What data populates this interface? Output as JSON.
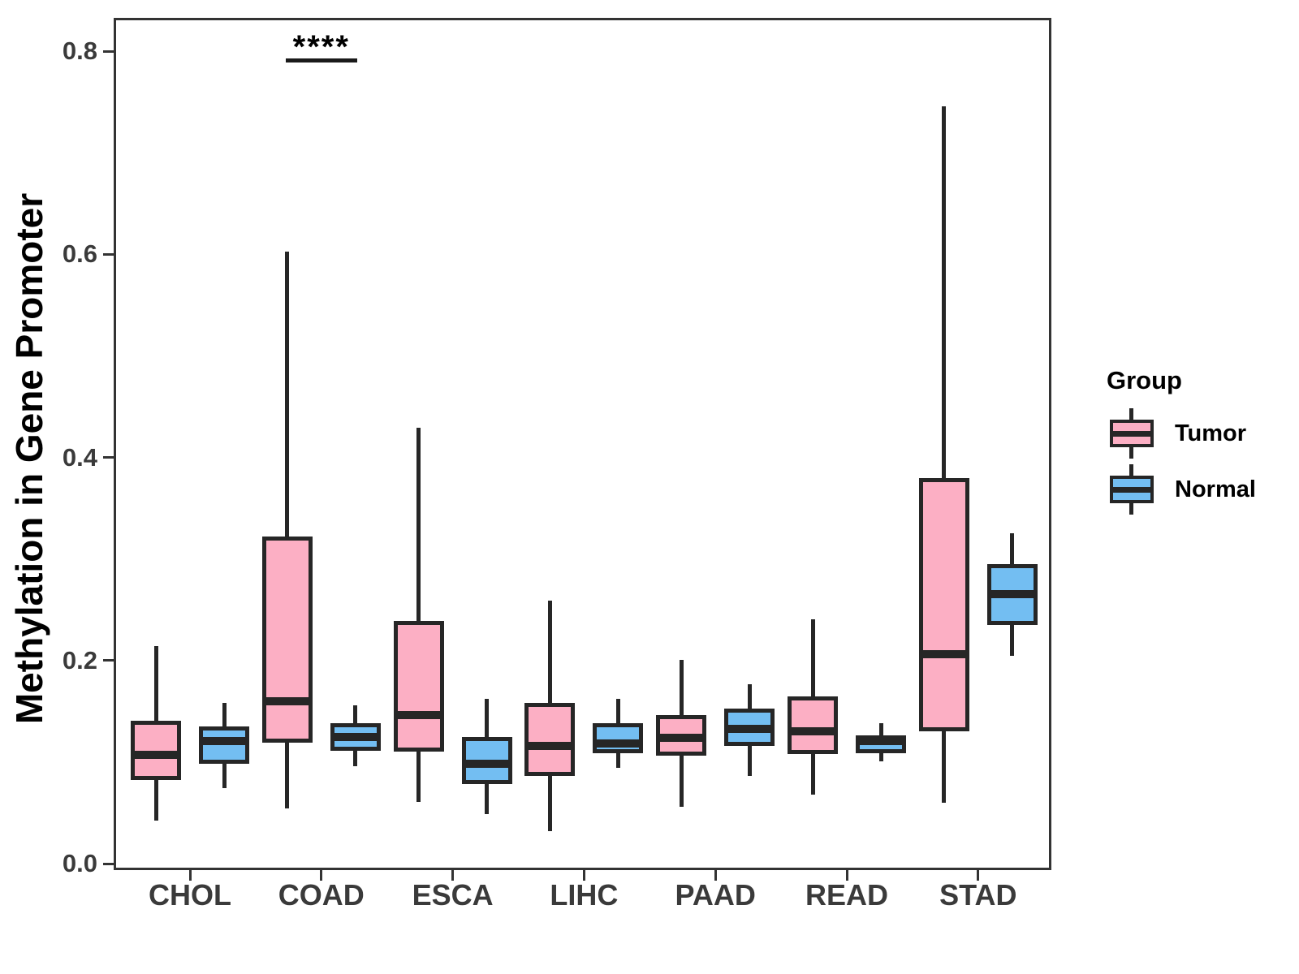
{
  "chart_data": {
    "type": "boxplot",
    "title": "",
    "xlabel": "",
    "ylabel": "Methylation in Gene Promoter",
    "ylim": [
      0,
      0.84
    ],
    "yticks": [
      0.0,
      0.2,
      0.4,
      0.6,
      0.8
    ],
    "ytick_labels": [
      "0.0",
      "0.2",
      "0.4",
      "0.6",
      "0.8"
    ],
    "categories": [
      "CHOL",
      "COAD",
      "ESCA",
      "LIHC",
      "PAAD",
      "READ",
      "STAD"
    ],
    "grid": false,
    "legend_title": "Group",
    "legend_position": "right",
    "colors": {
      "tumor_fill": "#FCAFC4",
      "normal_fill": "#73BEF2",
      "stroke": "#262626",
      "panel_border": "#333333",
      "axis_text": "#3a3a3a"
    },
    "series": [
      {
        "name": "Tumor",
        "fill": "#FCAFC4",
        "boxes": [
          {
            "category": "CHOL",
            "whisker_low": 0.042,
            "q1": 0.082,
            "median": 0.107,
            "q3": 0.141,
            "whisker_high": 0.214
          },
          {
            "category": "COAD",
            "whisker_low": 0.054,
            "q1": 0.119,
            "median": 0.16,
            "q3": 0.322,
            "whisker_high": 0.603
          },
          {
            "category": "ESCA",
            "whisker_low": 0.061,
            "q1": 0.11,
            "median": 0.146,
            "q3": 0.239,
            "whisker_high": 0.429
          },
          {
            "category": "LIHC",
            "whisker_low": 0.032,
            "q1": 0.086,
            "median": 0.116,
            "q3": 0.158,
            "whisker_high": 0.259
          },
          {
            "category": "PAAD",
            "whisker_low": 0.056,
            "q1": 0.106,
            "median": 0.124,
            "q3": 0.146,
            "whisker_high": 0.201
          },
          {
            "category": "READ",
            "whisker_low": 0.068,
            "q1": 0.108,
            "median": 0.13,
            "q3": 0.165,
            "whisker_high": 0.241
          },
          {
            "category": "STAD",
            "whisker_low": 0.06,
            "q1": 0.13,
            "median": 0.206,
            "q3": 0.38,
            "whisker_high": 0.746
          }
        ]
      },
      {
        "name": "Normal",
        "fill": "#73BEF2",
        "boxes": [
          {
            "category": "CHOL",
            "whisker_low": 0.074,
            "q1": 0.098,
            "median": 0.121,
            "q3": 0.135,
            "whisker_high": 0.158
          },
          {
            "category": "COAD",
            "whisker_low": 0.096,
            "q1": 0.111,
            "median": 0.125,
            "q3": 0.138,
            "whisker_high": 0.156
          },
          {
            "category": "ESCA",
            "whisker_low": 0.049,
            "q1": 0.078,
            "median": 0.098,
            "q3": 0.125,
            "whisker_high": 0.162
          },
          {
            "category": "LIHC",
            "whisker_low": 0.094,
            "q1": 0.109,
            "median": 0.118,
            "q3": 0.138,
            "whisker_high": 0.162
          },
          {
            "category": "PAAD",
            "whisker_low": 0.086,
            "q1": 0.116,
            "median": 0.133,
            "q3": 0.153,
            "whisker_high": 0.177
          },
          {
            "category": "READ",
            "whisker_low": 0.101,
            "q1": 0.109,
            "median": 0.121,
            "q3": 0.126,
            "whisker_high": 0.138
          },
          {
            "category": "STAD",
            "whisker_low": 0.205,
            "q1": 0.235,
            "median": 0.265,
            "q3": 0.295,
            "whisker_high": 0.325
          }
        ]
      }
    ],
    "annotations": [
      {
        "text": "****",
        "category": "COAD",
        "between": [
          "Tumor",
          "Normal"
        ],
        "y": 0.793
      }
    ]
  }
}
